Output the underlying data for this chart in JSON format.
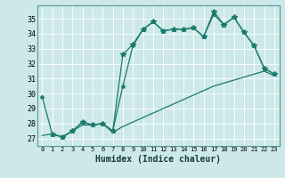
{
  "xlabel": "Humidex (Indice chaleur)",
  "bg_color": "#cce8e8",
  "grid_color": "#ffffff",
  "line_color": "#1a7a6e",
  "xlim": [
    -0.5,
    23.5
  ],
  "ylim": [
    26.5,
    35.9
  ],
  "yticks": [
    27,
    28,
    29,
    30,
    31,
    32,
    33,
    34,
    35
  ],
  "xticks": [
    0,
    1,
    2,
    3,
    4,
    5,
    6,
    7,
    8,
    9,
    10,
    11,
    12,
    13,
    14,
    15,
    16,
    17,
    18,
    19,
    20,
    21,
    22,
    23
  ],
  "series1_x": [
    0,
    1,
    2,
    3,
    4,
    5,
    6,
    7,
    8,
    9,
    10,
    11,
    12,
    13,
    14,
    15,
    16,
    17,
    18,
    19,
    20,
    21,
    22,
    23
  ],
  "series1_y": [
    29.8,
    27.3,
    27.1,
    27.5,
    28.1,
    27.9,
    28.0,
    27.5,
    30.5,
    33.2,
    34.3,
    34.8,
    34.2,
    34.3,
    34.3,
    34.4,
    33.8,
    35.3,
    34.6,
    35.1,
    34.1,
    33.2,
    31.7,
    31.3
  ],
  "series2_x": [
    0,
    1,
    2,
    3,
    4,
    5,
    6,
    7,
    8,
    9,
    10,
    11,
    12,
    13,
    14,
    15,
    16,
    17,
    18,
    19,
    20,
    21,
    22,
    23
  ],
  "series2_y": [
    27.2,
    27.3,
    27.1,
    27.5,
    27.9,
    27.9,
    28.0,
    27.4,
    27.8,
    28.1,
    28.4,
    28.7,
    29.0,
    29.3,
    29.6,
    29.9,
    30.2,
    30.5,
    30.7,
    30.9,
    31.1,
    31.3,
    31.5,
    31.2
  ],
  "series3_x": [
    1,
    2,
    3,
    4,
    5,
    6,
    7,
    8,
    9,
    10,
    11,
    12,
    13,
    14,
    15,
    16,
    17,
    18,
    19,
    20,
    21,
    22,
    23
  ],
  "series3_y": [
    27.3,
    27.1,
    27.5,
    28.1,
    27.9,
    28.0,
    27.5,
    32.6,
    33.3,
    34.3,
    34.8,
    34.2,
    34.3,
    34.3,
    34.4,
    33.8,
    35.5,
    34.6,
    35.1,
    34.1,
    33.2,
    31.7,
    31.3
  ]
}
